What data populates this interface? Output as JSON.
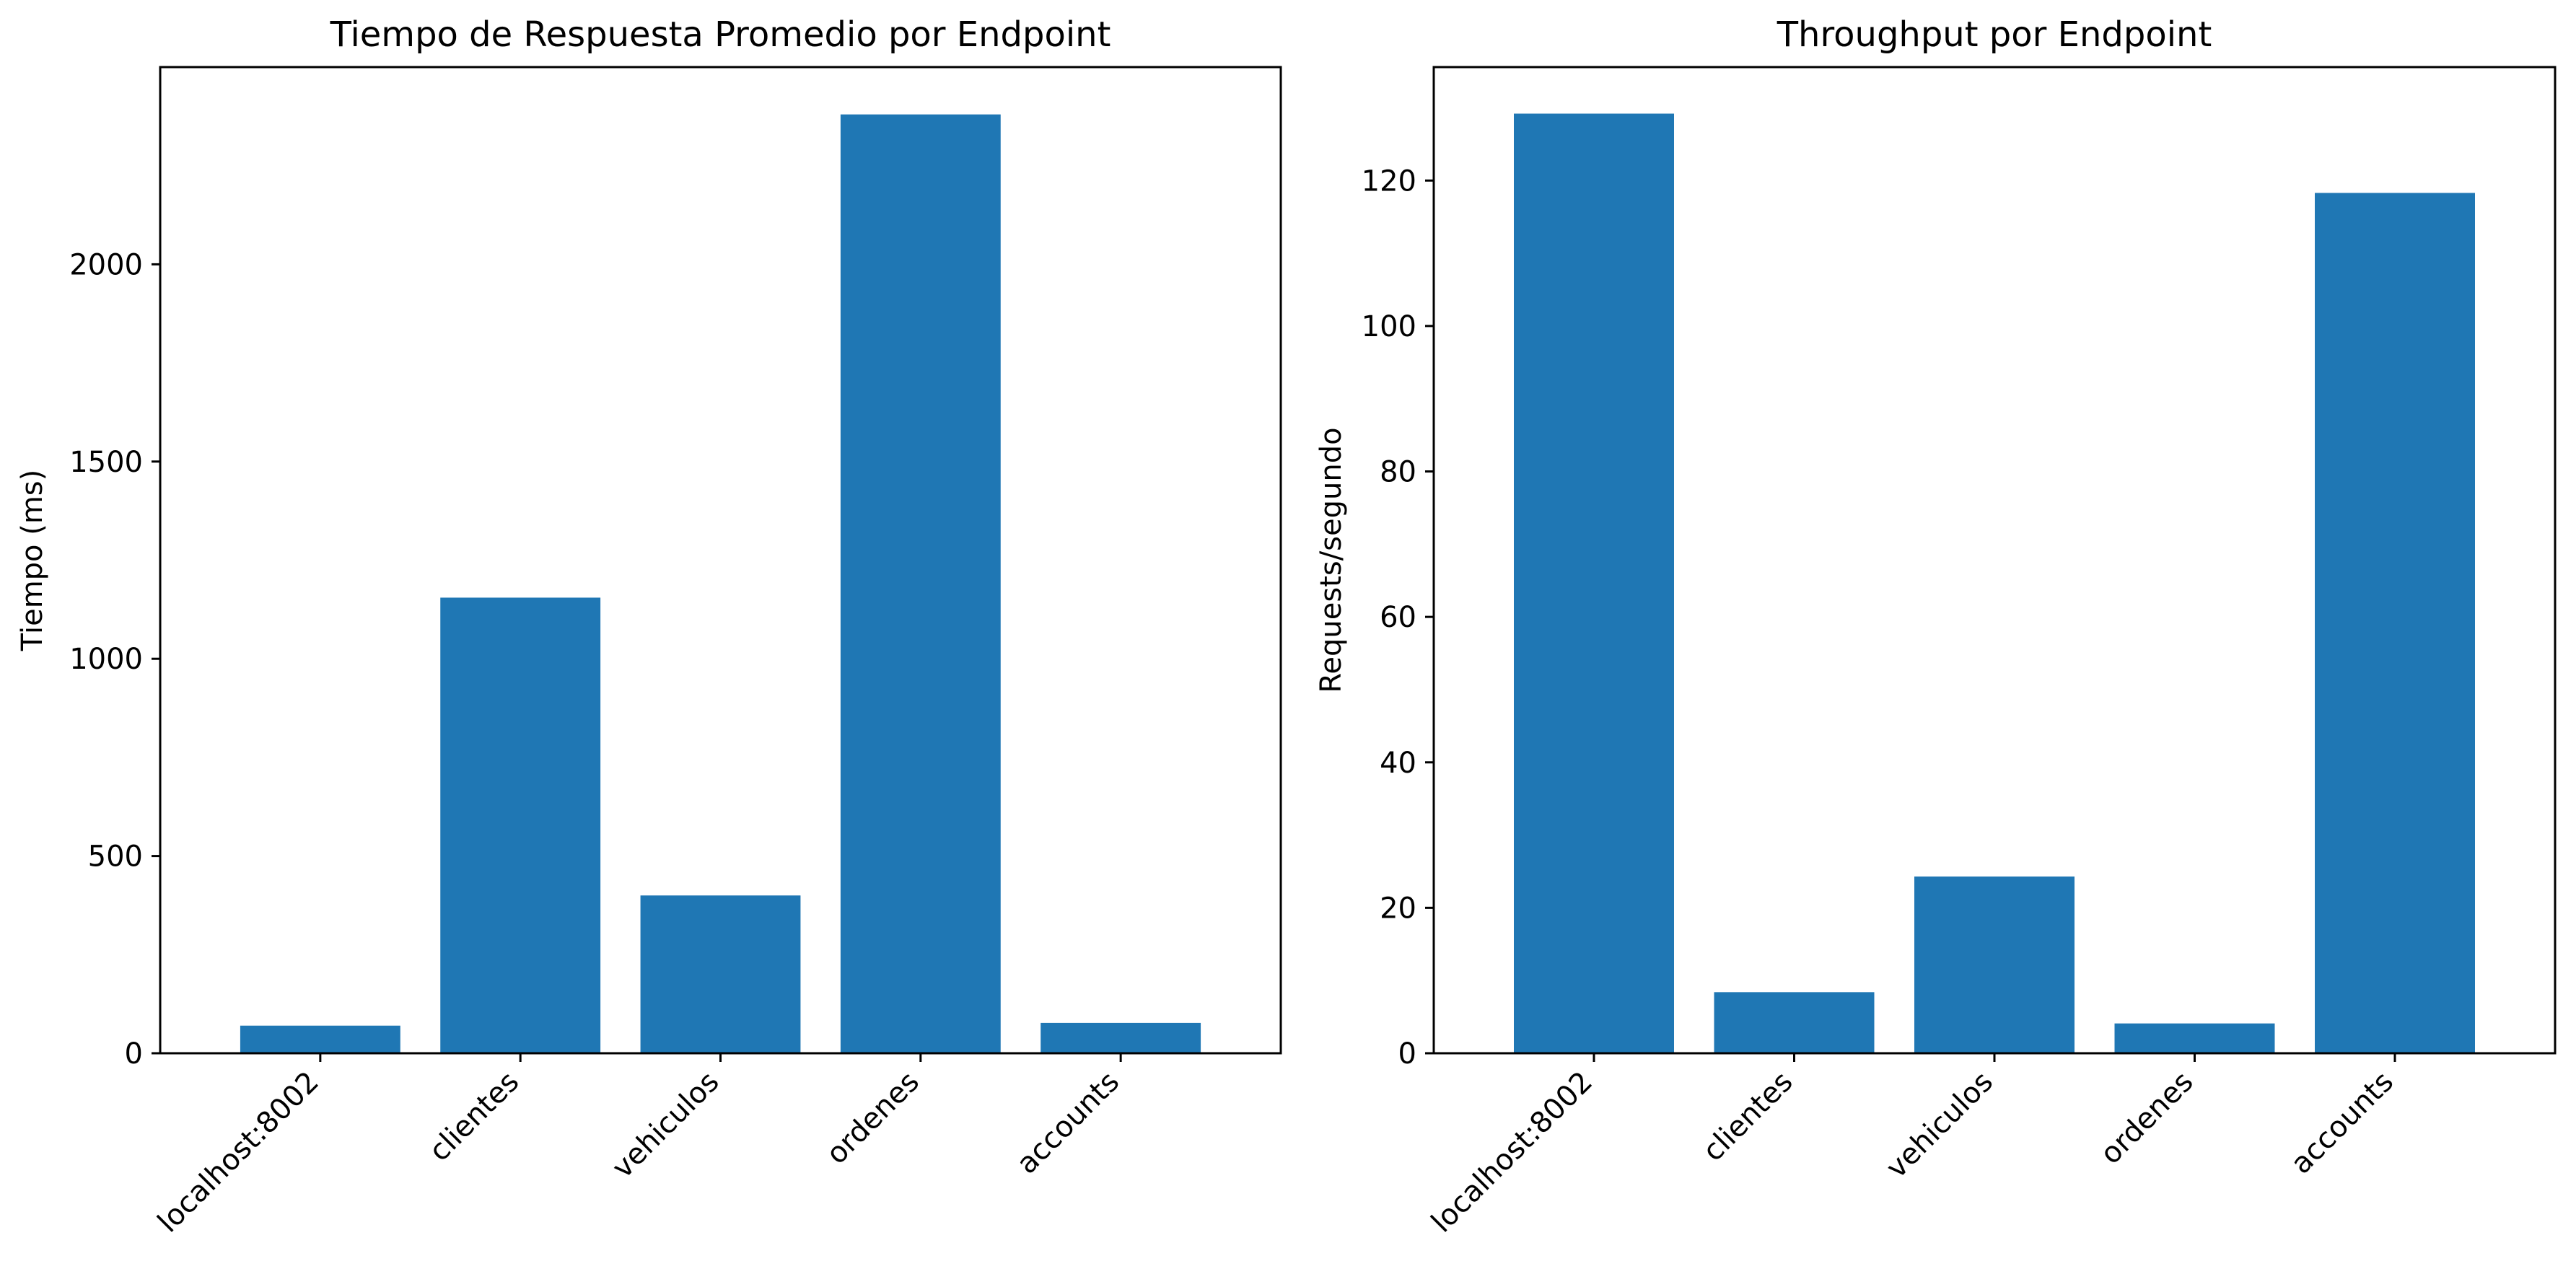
{
  "chart_data": [
    {
      "type": "bar",
      "title": "Tiempo de Respuesta Promedio por Endpoint",
      "xlabel": "",
      "ylabel": "Tiempo (ms)",
      "categories": [
        "localhost:8002",
        "clientes",
        "vehiculos",
        "ordenes",
        "accounts"
      ],
      "values": [
        70,
        1155,
        400,
        2380,
        77
      ],
      "ylim": [
        0,
        2500
      ],
      "yticks": [
        0,
        500,
        1000,
        1500,
        2000
      ],
      "bar_color": "#1f77b4",
      "grid": false,
      "legend": "none"
    },
    {
      "type": "bar",
      "title": "Throughput por Endpoint",
      "xlabel": "",
      "ylabel": "Requests/segundo",
      "categories": [
        "localhost:8002",
        "clientes",
        "vehiculos",
        "ordenes",
        "accounts"
      ],
      "values": [
        129.2,
        8.4,
        24.3,
        4.1,
        118.3
      ],
      "ylim": [
        0,
        135.6
      ],
      "yticks": [
        0,
        20,
        40,
        60,
        80,
        100,
        120
      ],
      "bar_color": "#1f77b4",
      "grid": false,
      "legend": "none"
    }
  ]
}
